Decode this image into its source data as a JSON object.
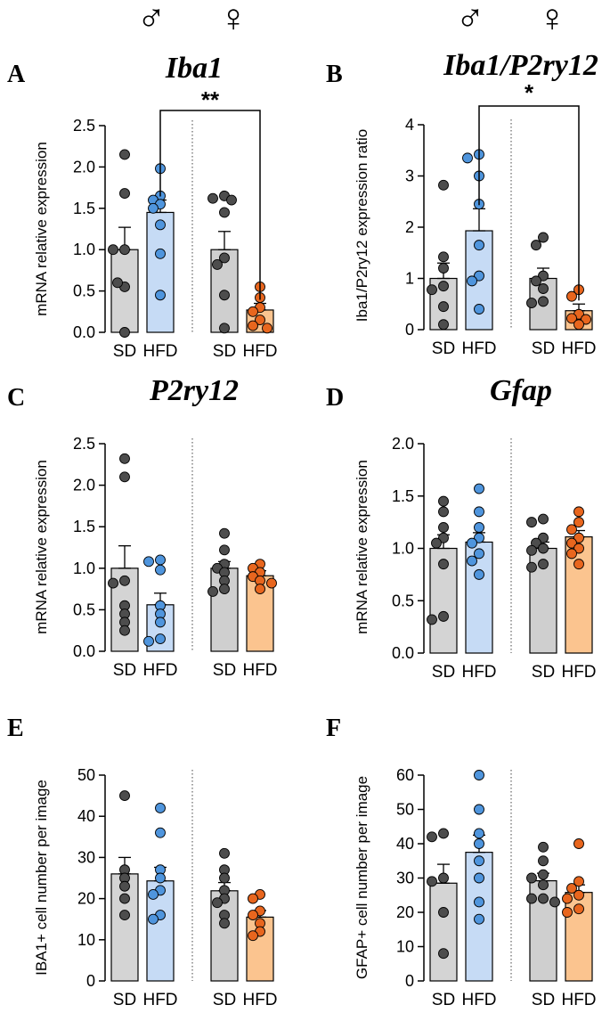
{
  "header": {
    "male_symbol": "♂",
    "female_symbol": "♀"
  },
  "colors": {
    "sd_bar": "#d4d4d4",
    "sd_dot": "#4d4d4d",
    "hfd_male_bar": "#c6dbf5",
    "hfd_male_dot": "#4f95dd",
    "hfd_female_bar": "#fbc48f",
    "hfd_female_dot": "#e8661e",
    "female_sd_bar": "#cfcfcf",
    "axis": "#000000"
  },
  "chart_data": [
    {
      "panel": "A",
      "type": "bar",
      "title": "Iba1",
      "ylabel": "mRNA relative expression",
      "ylim": [
        0,
        2.5
      ],
      "yticks": [
        0.0,
        0.5,
        1.0,
        1.5,
        2.0,
        2.5
      ],
      "ytick_labels": [
        "0.0",
        "0.5",
        "1.0",
        "1.5",
        "2.0",
        "2.5"
      ],
      "categories": [
        "SD",
        "HFD",
        "SD",
        "HFD"
      ],
      "sex": [
        "male",
        "male",
        "female",
        "female"
      ],
      "means": [
        1.0,
        1.45,
        1.0,
        0.27
      ],
      "sem": [
        0.27,
        0.15,
        0.22,
        0.08
      ],
      "points": [
        [
          2.15,
          1.68,
          1.0,
          1.0,
          0.55,
          0.6,
          0.0
        ],
        [
          1.98,
          1.65,
          1.6,
          1.55,
          1.5,
          1.3,
          0.95,
          0.45
        ],
        [
          1.65,
          1.62,
          1.6,
          1.45,
          0.9,
          0.82,
          0.45,
          0.05
        ],
        [
          0.55,
          0.42,
          0.3,
          0.25,
          0.15,
          0.08,
          0.05
        ]
      ],
      "significance": {
        "from": 1,
        "to": 3,
        "label": "**"
      }
    },
    {
      "panel": "B",
      "type": "bar",
      "title": "Iba1/P2ry12",
      "ylabel": "Iba1/P2ry12 expression ratio",
      "ylim": [
        0,
        4
      ],
      "yticks": [
        0,
        1,
        2,
        3,
        4
      ],
      "ytick_labels": [
        "0",
        "1",
        "2",
        "3",
        "4"
      ],
      "categories": [
        "SD",
        "HFD",
        "SD",
        "HFD"
      ],
      "sex": [
        "male",
        "male",
        "female",
        "female"
      ],
      "means": [
        1.0,
        1.93,
        1.0,
        0.37
      ],
      "sem": [
        0.3,
        0.43,
        0.2,
        0.13
      ],
      "points": [
        [
          2.82,
          1.42,
          1.2,
          0.85,
          0.78,
          0.45,
          0.1
        ],
        [
          3.42,
          3.35,
          3.0,
          2.45,
          1.65,
          1.05,
          0.95,
          0.4
        ],
        [
          1.8,
          1.65,
          1.05,
          0.95,
          0.8,
          0.55,
          0.52
        ],
        [
          0.78,
          0.65,
          0.3,
          0.22,
          0.2,
          0.1
        ]
      ],
      "significance": {
        "from": 1,
        "to": 3,
        "label": "*"
      }
    },
    {
      "panel": "C",
      "type": "bar",
      "title": "P2ry12",
      "ylabel": "mRNA relative expression",
      "ylim": [
        0,
        2.5
      ],
      "yticks": [
        0.0,
        0.5,
        1.0,
        1.5,
        2.0,
        2.5
      ],
      "ytick_labels": [
        "0.0",
        "0.5",
        "1.0",
        "1.5",
        "2.0",
        "2.5"
      ],
      "categories": [
        "SD",
        "HFD",
        "SD",
        "HFD"
      ],
      "sex": [
        "male",
        "male",
        "female",
        "female"
      ],
      "means": [
        1.0,
        0.56,
        1.0,
        0.91
      ],
      "sem": [
        0.27,
        0.14,
        0.08,
        0.06
      ],
      "points": [
        [
          2.32,
          2.1,
          0.85,
          0.82,
          0.55,
          0.45,
          0.35,
          0.25
        ],
        [
          1.1,
          1.08,
          0.98,
          0.55,
          0.45,
          0.35,
          0.15,
          0.12
        ],
        [
          1.42,
          1.22,
          1.05,
          1.0,
          0.95,
          0.85,
          0.75,
          0.72
        ],
        [
          1.05,
          1.0,
          0.95,
          0.9,
          0.85,
          0.82,
          0.75
        ]
      ],
      "significance": null
    },
    {
      "panel": "D",
      "type": "bar",
      "title": "Gfap",
      "ylabel": "mRNA relative expression",
      "ylim": [
        0,
        2.0
      ],
      "yticks": [
        0.0,
        0.5,
        1.0,
        1.5,
        2.0
      ],
      "ytick_labels": [
        "0.0",
        "0.5",
        "1.0",
        "1.5",
        "2.0"
      ],
      "categories": [
        "SD",
        "HFD",
        "SD",
        "HFD"
      ],
      "sex": [
        "male",
        "male",
        "female",
        "female"
      ],
      "means": [
        1.0,
        1.06,
        1.0,
        1.11
      ],
      "sem": [
        0.13,
        0.09,
        0.06,
        0.06
      ],
      "points": [
        [
          1.45,
          1.35,
          1.2,
          1.1,
          1.05,
          0.85,
          0.35,
          0.32
        ],
        [
          1.57,
          1.35,
          1.2,
          1.1,
          1.05,
          0.95,
          0.88,
          0.75
        ],
        [
          1.28,
          1.25,
          1.1,
          1.05,
          1.0,
          0.98,
          0.85,
          0.82
        ],
        [
          1.35,
          1.25,
          1.18,
          1.1,
          1.05,
          1.0,
          0.95,
          0.85
        ]
      ],
      "significance": null
    },
    {
      "panel": "E",
      "type": "bar",
      "title": "",
      "ylabel": "IBA1+ cell number per image",
      "ylim": [
        0,
        50
      ],
      "yticks": [
        0,
        10,
        20,
        30,
        40,
        50
      ],
      "ytick_labels": [
        "0",
        "10",
        "20",
        "30",
        "40",
        "50"
      ],
      "categories": [
        "SD",
        "HFD",
        "SD",
        "HFD"
      ],
      "sex": [
        "male",
        "male",
        "female",
        "female"
      ],
      "means": [
        26.0,
        24.3,
        21.9,
        15.5
      ],
      "sem": [
        4.0,
        3.3,
        2.0,
        1.6
      ],
      "points": [
        [
          45,
          27,
          25,
          23,
          20,
          16
        ],
        [
          42,
          36,
          27,
          25,
          22,
          21,
          16,
          15
        ],
        [
          31,
          27,
          25,
          22,
          20,
          19,
          16,
          14
        ],
        [
          21,
          20,
          17,
          16,
          14,
          12,
          11
        ]
      ],
      "significance": null
    },
    {
      "panel": "F",
      "type": "bar",
      "title": "",
      "ylabel": "GFAP+ cell number per image",
      "ylim": [
        0,
        60
      ],
      "yticks": [
        0,
        10,
        20,
        30,
        40,
        50,
        60
      ],
      "ytick_labels": [
        "0",
        "10",
        "20",
        "30",
        "40",
        "50",
        "60"
      ],
      "categories": [
        "SD",
        "HFD",
        "SD",
        "HFD"
      ],
      "sex": [
        "male",
        "male",
        "female",
        "female"
      ],
      "means": [
        28.5,
        37.5,
        29.2,
        25.8
      ],
      "sem": [
        5.5,
        5.0,
        2.2,
        2.2
      ],
      "points": [
        [
          43,
          42,
          30,
          29,
          20,
          8
        ],
        [
          60,
          50,
          43,
          40,
          35,
          30,
          23,
          18
        ],
        [
          39,
          35,
          31,
          30,
          28,
          24,
          24,
          23
        ],
        [
          40,
          29,
          27,
          25,
          24,
          21,
          20
        ]
      ],
      "significance": null
    }
  ]
}
